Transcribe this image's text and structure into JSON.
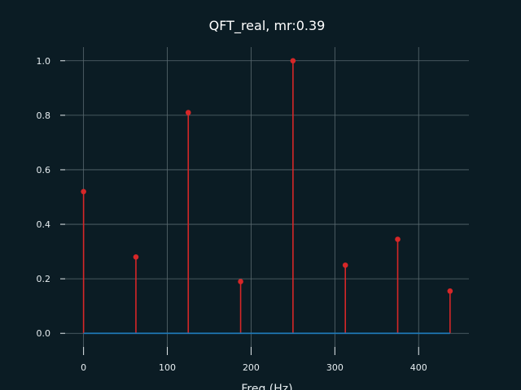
{
  "chart_data": {
    "type": "stem",
    "title": "QFT_real, mr:0.39",
    "xlabel": "Freq (Hz)",
    "ylabel": "",
    "xlim": [
      -22,
      460
    ],
    "ylim": [
      -0.05,
      1.05
    ],
    "x_ticks": [
      0,
      100,
      200,
      300,
      400
    ],
    "y_ticks": [
      0.0,
      0.2,
      0.4,
      0.6,
      0.8,
      1.0
    ],
    "x_tick_labels": [
      "0",
      "100",
      "200",
      "300",
      "400"
    ],
    "y_tick_labels": [
      "0.0",
      "0.2",
      "0.4",
      "0.6",
      "0.8",
      "1.0"
    ],
    "grid": true,
    "series": [
      {
        "x": [
          0,
          62.5,
          125,
          187.5,
          250,
          312.5,
          375,
          437.5
        ],
        "values": [
          0.52,
          0.28,
          0.81,
          0.19,
          1.0,
          0.25,
          0.345,
          0.155
        ]
      }
    ],
    "baseline": 0.0
  },
  "colors": {
    "background": "#0b1c24",
    "grid": "#5a6a70",
    "stem": "#d62728",
    "baseline": "#1f77b4",
    "text": "#e6edf0",
    "title": "#ffffff"
  }
}
